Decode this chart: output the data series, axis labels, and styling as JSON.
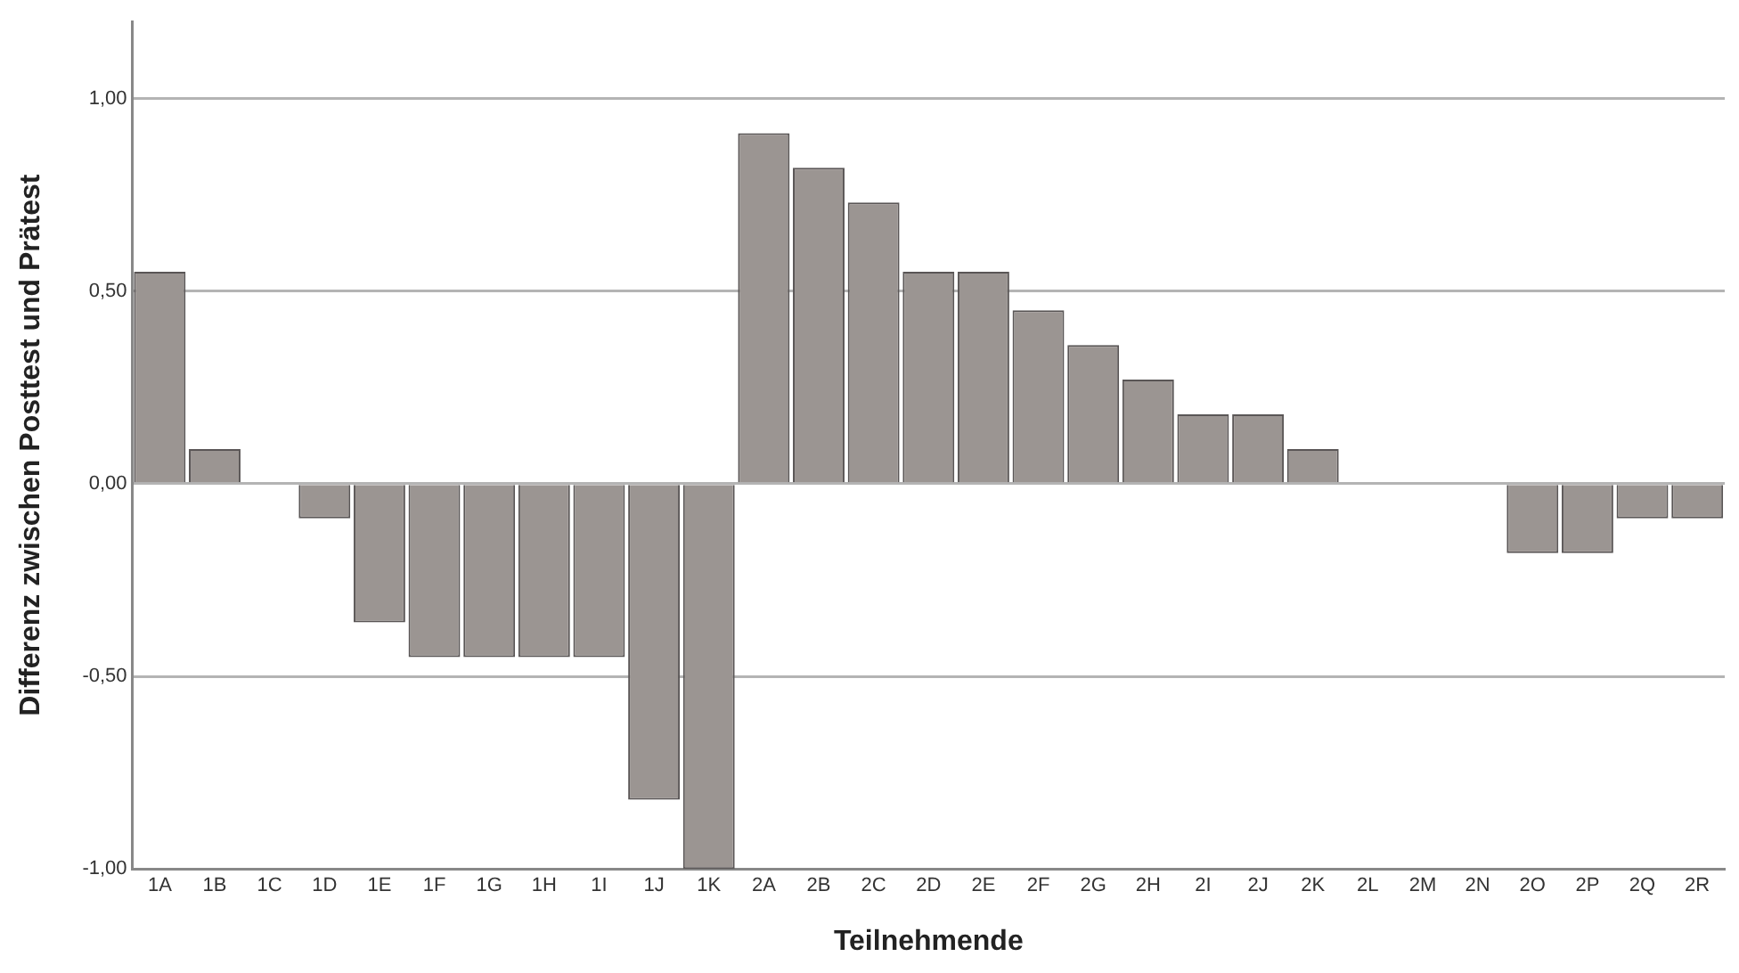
{
  "chart_data": {
    "type": "bar",
    "xlabel": "Teilnehmende",
    "ylabel": "Differenz zwischen Posttest und Prätest",
    "categories": [
      "1A",
      "1B",
      "1C",
      "1D",
      "1E",
      "1F",
      "1G",
      "1H",
      "1I",
      "1J",
      "1K",
      "2A",
      "2B",
      "2C",
      "2D",
      "2E",
      "2F",
      "2G",
      "2H",
      "2I",
      "2J",
      "2K",
      "2L",
      "2M",
      "2N",
      "2O",
      "2P",
      "2Q",
      "2R"
    ],
    "values": [
      0.55,
      0.09,
      0,
      -0.09,
      -0.36,
      -0.45,
      -0.45,
      -0.45,
      -0.45,
      -0.82,
      -1.0,
      0.91,
      0.82,
      0.73,
      0.55,
      0.55,
      0.45,
      0.36,
      0.27,
      0.18,
      0.18,
      0.09,
      0,
      0,
      0,
      -0.18,
      -0.18,
      -0.09,
      -0.09
    ],
    "color": "#9b9592",
    "ylim": [
      -1,
      1.2
    ],
    "yticks": [
      {
        "value": -1,
        "label": "-1,00"
      },
      {
        "value": -0.5,
        "label": "-0,50"
      },
      {
        "value": 0,
        "label": "0,00"
      },
      {
        "value": 0.5,
        "label": "0,50"
      },
      {
        "value": 1,
        "label": "1,00"
      }
    ],
    "grid": "y",
    "legend": false
  }
}
